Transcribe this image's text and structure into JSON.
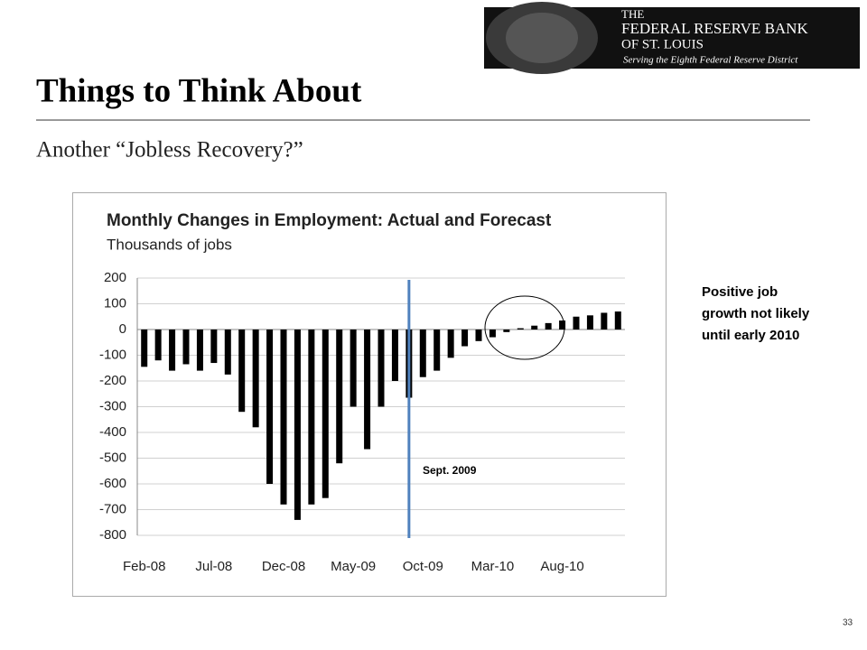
{
  "header": {
    "logo_line1": "THE",
    "logo_line2": "FEDERAL RESERVE BANK",
    "logo_line3": "OF ST. LOUIS",
    "logo_tagline": "Serving the Eighth Federal Reserve District"
  },
  "slide": {
    "title": "Things to Think About",
    "subtitle": "Another “Jobless Recovery?”",
    "note": "Positive job growth not likely until early 2010",
    "page_number": "33"
  },
  "chart_data": {
    "type": "bar",
    "title": "Monthly Changes in Employment: Actual and Forecast",
    "subtitle": "Thousands of jobs",
    "categories": [
      "Feb-08",
      null,
      null,
      null,
      null,
      "Jul-08",
      null,
      null,
      null,
      null,
      "Dec-08",
      null,
      null,
      null,
      null,
      "May-09",
      null,
      null,
      null,
      null,
      "Oct-09",
      null,
      null,
      null,
      null,
      "Mar-10",
      null,
      null,
      null,
      null,
      "Aug-10",
      null,
      null,
      null,
      null
    ],
    "values": [
      -145,
      -120,
      -160,
      -135,
      -160,
      -130,
      -175,
      -320,
      -380,
      -600,
      -680,
      -740,
      -680,
      -655,
      -520,
      -300,
      -465,
      -300,
      -200,
      -265,
      -185,
      -160,
      -110,
      -65,
      -45,
      -30,
      -10,
      5,
      15,
      25,
      35,
      50,
      55,
      65,
      70
    ],
    "color": "#000000",
    "ylim": [
      -800,
      200
    ],
    "yticks": [
      -800,
      -700,
      -600,
      -500,
      -400,
      -300,
      -200,
      -100,
      0,
      100,
      200
    ],
    "grid": true,
    "annotation": "Sept. 2009"
  }
}
